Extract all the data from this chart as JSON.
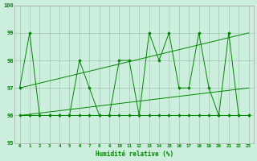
{
  "x": [
    0,
    1,
    2,
    3,
    4,
    5,
    6,
    7,
    8,
    9,
    10,
    11,
    12,
    13,
    14,
    15,
    16,
    17,
    18,
    19,
    20,
    21,
    22,
    23
  ],
  "line_zigzag": [
    97,
    99,
    96,
    96,
    96,
    96,
    98,
    97,
    96,
    96,
    98,
    98,
    96,
    99,
    98,
    99,
    97,
    97,
    99,
    97,
    96,
    99,
    96,
    96
  ],
  "line_flat": [
    96,
    96,
    96,
    96,
    96,
    96,
    96,
    96,
    96,
    96,
    96,
    96,
    96,
    96,
    96,
    96,
    96,
    96,
    96,
    96,
    96,
    96,
    96,
    96
  ],
  "trend1_x": [
    0,
    23
  ],
  "trend1_y": [
    97.0,
    99.0
  ],
  "trend2_x": [
    0,
    23
  ],
  "trend2_y": [
    96.0,
    97.0
  ],
  "line_color": "#008800",
  "bg_color": "#cceedd",
  "grid_color": "#99bbaa",
  "xlabel": "Humidité relative (%)",
  "ylim": [
    95,
    100
  ],
  "xlim": [
    -0.5,
    23.5
  ],
  "yticks": [
    95,
    96,
    97,
    98,
    99,
    100
  ],
  "xtick_labels": [
    "0",
    "1",
    "2",
    "3",
    "4",
    "5",
    "6",
    "7",
    "8",
    "9",
    "10",
    "11",
    "12",
    "13",
    "14",
    "15",
    "16",
    "17",
    "18",
    "19",
    "20",
    "21",
    "22",
    "23"
  ]
}
